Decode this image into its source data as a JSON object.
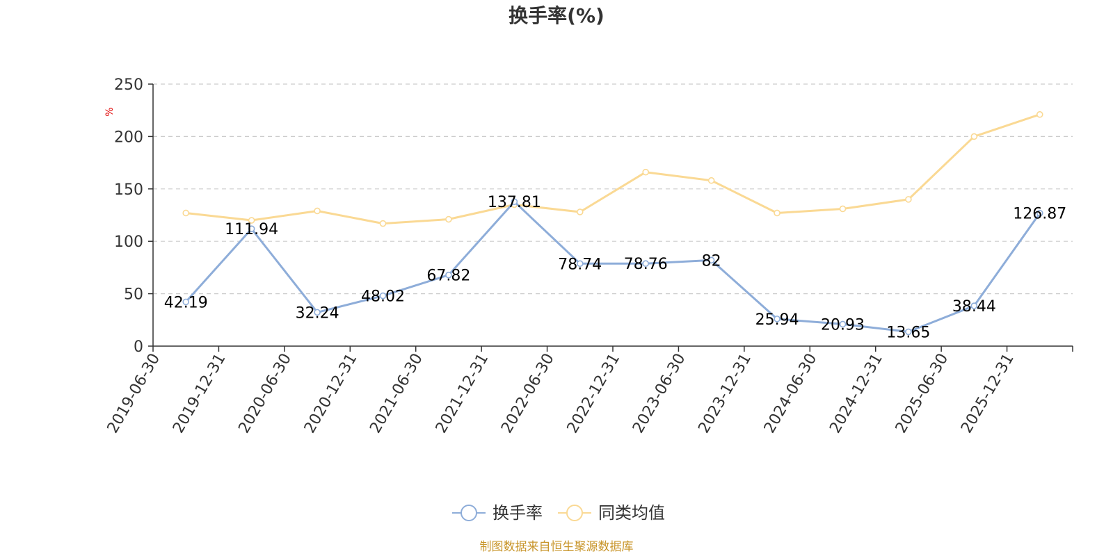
{
  "colors": {
    "series_primary": "#8eadd9",
    "series_secondary": "#fad994",
    "axis": "#333333",
    "grid": "#cccccc",
    "unit": "#e00000",
    "source": "#c8952a"
  },
  "source_note": "制图数据来自恒生聚源数据库",
  "legend": {
    "items": [
      "换手率",
      "同类均值"
    ],
    "placement": "bottom-center",
    "icon": "circle-line-marker-icon"
  },
  "chart_data": {
    "type": "line",
    "title": "换手率(%)",
    "xlabel": "",
    "ylabel": "%",
    "ylim": [
      0,
      250
    ],
    "yticks": [
      0,
      50,
      100,
      150,
      200,
      250
    ],
    "grid": "horizontal-dashed",
    "categories": [
      "2019-06-30",
      "2019-12-31",
      "2020-06-30",
      "2020-12-31",
      "2021-06-30",
      "2021-12-31",
      "2022-06-30",
      "2022-12-31",
      "2023-06-30",
      "2023-12-31",
      "2024-06-30",
      "2024-12-31",
      "2025-06-30",
      "2025-12-31"
    ],
    "series": [
      {
        "name": "换手率",
        "values": [
          42.19,
          111.94,
          32.24,
          48.02,
          67.82,
          137.81,
          78.74,
          78.76,
          82,
          25.94,
          20.93,
          13.65,
          38.44,
          126.87
        ],
        "labels": [
          "42.19",
          "111.94",
          "32.24",
          "48.02",
          "67.82",
          "137.81",
          "78.74",
          "78.76",
          "82",
          "25.94",
          "20.93",
          "13.65",
          "38.44",
          "126.87"
        ]
      },
      {
        "name": "同类均值",
        "values": [
          127,
          120,
          129,
          117,
          121,
          135,
          128,
          166,
          158,
          127,
          131,
          140,
          200,
          221
        ]
      }
    ]
  }
}
